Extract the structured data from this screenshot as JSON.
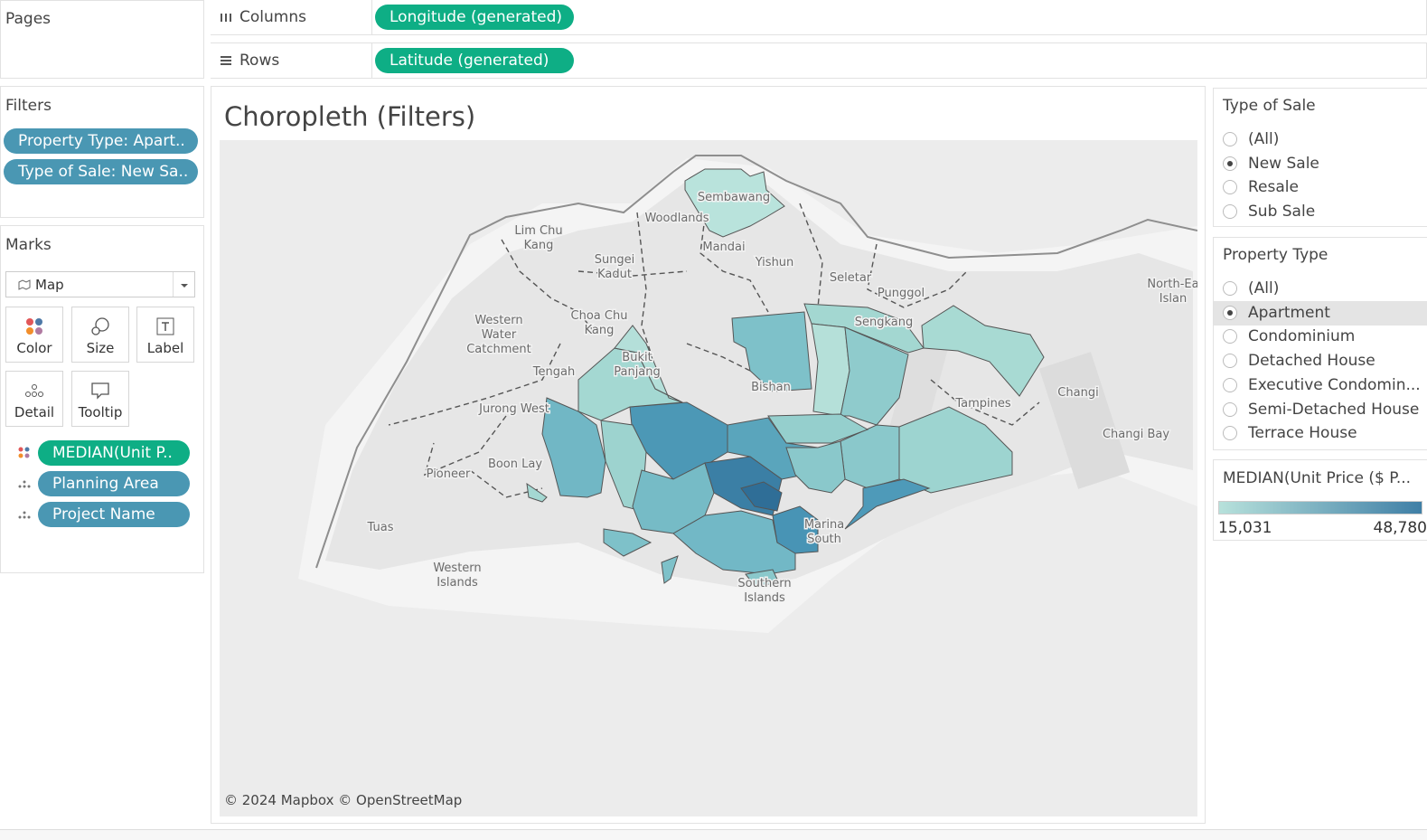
{
  "pages_shelf": {
    "title": "Pages"
  },
  "columns_shelf": {
    "label": "Columns",
    "pill": "Longitude (generated)"
  },
  "rows_shelf": {
    "label": "Rows",
    "pill": "Latitude (generated)"
  },
  "filters": {
    "title": "Filters",
    "pills": [
      "Property Type: Apart..",
      "Type of Sale: New Sa.."
    ]
  },
  "marks": {
    "title": "Marks",
    "mark_type": "Map",
    "buttons": [
      "Color",
      "Size",
      "Label",
      "Detail",
      "Tooltip"
    ],
    "fields": [
      "MEDIAN(Unit P..",
      "Planning Area",
      "Project Name"
    ]
  },
  "view": {
    "title": "Choropleth (Filters)",
    "place_labels": [
      [
        "Sembawang"
      ],
      [
        "Woodlands"
      ],
      [
        "Lim Chu",
        "Kang"
      ],
      [
        "Mandai"
      ],
      [
        "Sungei",
        "Kadut"
      ],
      [
        "Yishun"
      ],
      [
        "Seletar"
      ],
      [
        "Punggol"
      ],
      [
        "Sengkang"
      ],
      [
        "Western",
        "Water",
        "Catchment"
      ],
      [
        "Choa Chu",
        "Kang"
      ],
      [
        "North-Ea",
        "Islan"
      ],
      [
        "Tengah"
      ],
      [
        "Bukit",
        "Panjang"
      ],
      [
        "Bishan"
      ],
      [
        "Tampines"
      ],
      [
        "Changi"
      ],
      [
        "Jurong West"
      ],
      [
        "Changi Bay"
      ],
      [
        "Pioneer"
      ],
      [
        "Boon Lay"
      ],
      [
        "Tuas"
      ],
      [
        "Western",
        "Islands"
      ],
      [
        "Southern",
        "Islands"
      ],
      [
        "Marina",
        "South"
      ]
    ],
    "attribution": "© 2024 Mapbox © OpenStreetMap"
  },
  "type_of_sale": {
    "title": "Type of Sale",
    "options": [
      "(All)",
      "New Sale",
      "Resale",
      "Sub Sale"
    ],
    "selected": 1
  },
  "property_type": {
    "title": "Property Type",
    "options": [
      "(All)",
      "Apartment",
      "Condominium",
      "Detached House",
      "Executive Condomin...",
      "Semi-Detached House",
      "Terrace House"
    ],
    "selected": 1,
    "highlighted": 1
  },
  "legend": {
    "title": "MEDIAN(Unit Price ($ P...",
    "min_label": "15,031",
    "max_label": "48,780",
    "colors": [
      "#b7e1db",
      "#3f7fa6"
    ]
  }
}
